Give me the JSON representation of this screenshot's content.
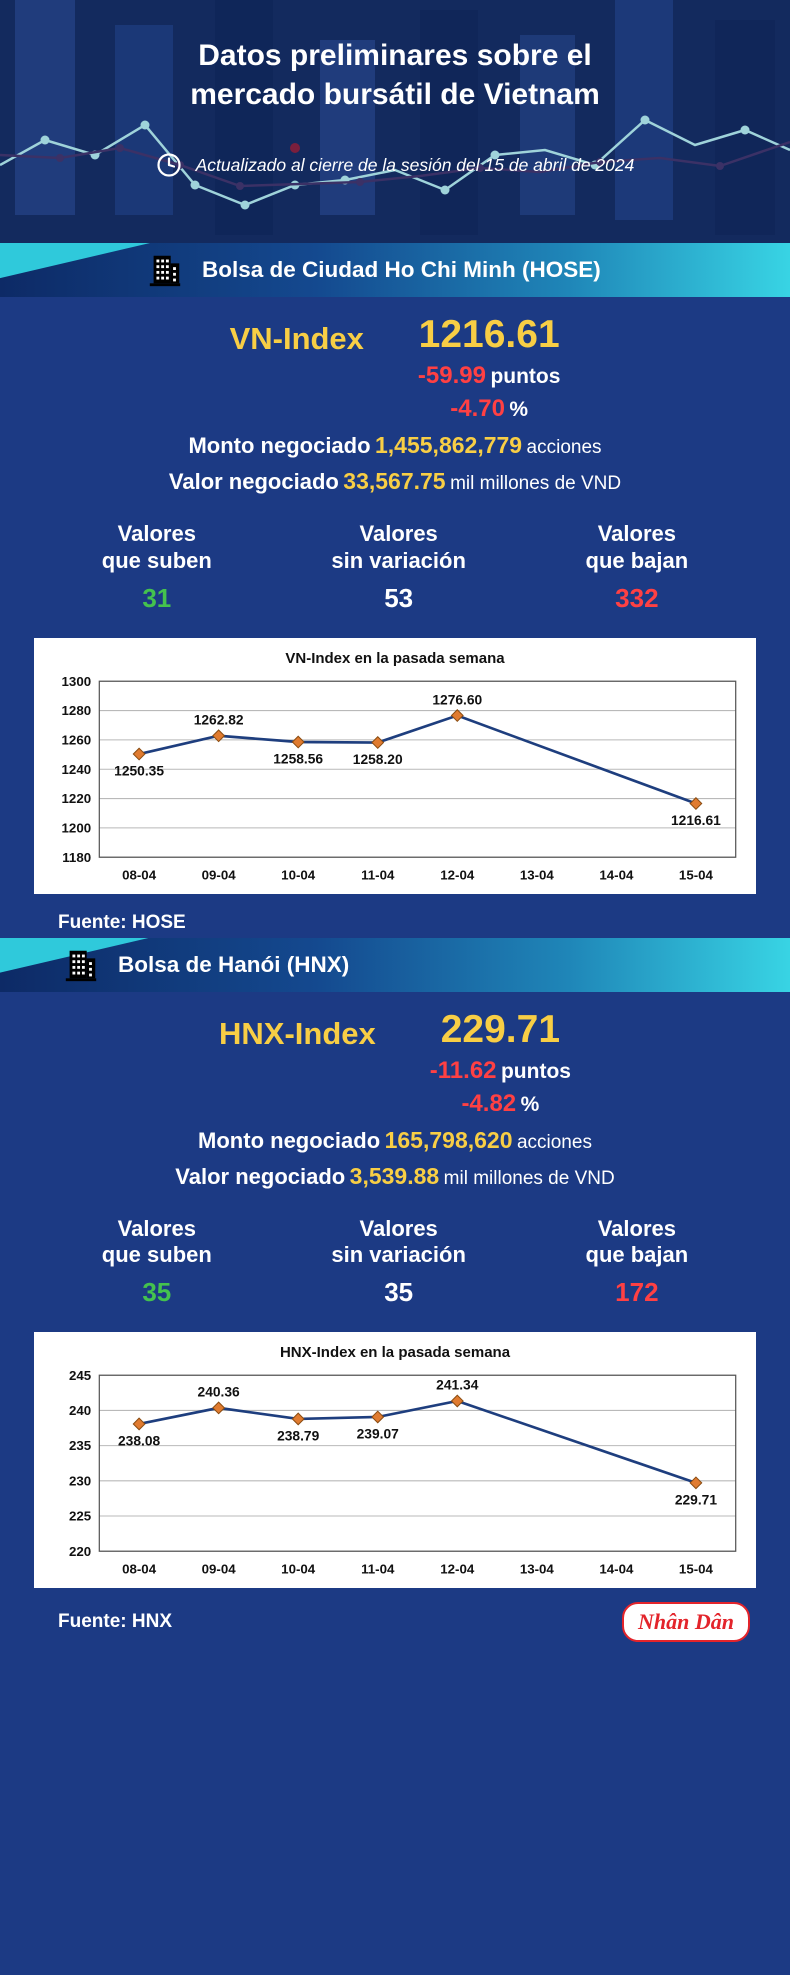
{
  "page": {
    "title_line1": "Datos preliminares sobre el",
    "title_line2": "mercado bursátil de Vietnam",
    "updated": "Actualizado al cierre de la sesión del 15 de abril de 2024"
  },
  "colors": {
    "background": "#1c3a84",
    "header_background": "#132a5e",
    "accent_yellow": "#f8ce45",
    "negative_red": "#ff4043",
    "positive_green": "#44c24e",
    "banner_cyan": "#38d4e4",
    "chart_line": "#1e3e7e",
    "chart_marker": "#e07b30"
  },
  "sections": [
    {
      "banner": "Bolsa de Ciudad Ho Chi Minh (HOSE)",
      "index_label": "VN-Index",
      "index_value": "1216.61",
      "change_points": "-59.99",
      "points_unit": "puntos",
      "change_pct": "-4.70",
      "pct_unit": "%",
      "volume_label": "Monto negociado",
      "volume_value": "1,455,862,779",
      "volume_unit": "acciones",
      "turnover_label": "Valor negociado",
      "turnover_value": "33,567.75",
      "turnover_unit": "mil millones de VND",
      "stats": [
        {
          "line1": "Valores",
          "line2": "que suben",
          "value": "31"
        },
        {
          "line1": "Valores",
          "line2": "sin variación",
          "value": "53"
        },
        {
          "line1": "Valores",
          "line2": "que bajan",
          "value": "332"
        }
      ],
      "source": "Fuente: HOSE"
    },
    {
      "banner": "Bolsa de Hanói (HNX)",
      "index_label": "HNX-Index",
      "index_value": "229.71",
      "change_points": "-11.62",
      "points_unit": "puntos",
      "change_pct": "-4.82",
      "pct_unit": "%",
      "volume_label": "Monto negociado",
      "volume_value": "165,798,620",
      "volume_unit": "acciones",
      "turnover_label": "Valor negociado",
      "turnover_value": "3,539.88",
      "turnover_unit": "mil millones de VND",
      "stats": [
        {
          "line1": "Valores",
          "line2": "que suben",
          "value": "35"
        },
        {
          "line1": "Valores",
          "line2": "sin variación",
          "value": "35"
        },
        {
          "line1": "Valores",
          "line2": "que bajan",
          "value": "172"
        }
      ],
      "source": "Fuente:  HNX"
    }
  ],
  "chart_data": [
    {
      "type": "line",
      "title": "VN-Index en la pasada semana",
      "x": [
        "08-04",
        "09-04",
        "10-04",
        "11-04",
        "12-04",
        "13-04",
        "14-04",
        "15-04"
      ],
      "values": [
        1250.35,
        1262.82,
        1258.56,
        1258.2,
        1276.6,
        null,
        null,
        1216.61
      ],
      "label_pos": [
        "below",
        "above",
        "below",
        "below",
        "above",
        null,
        null,
        "below"
      ],
      "ylim": [
        1180,
        1300
      ],
      "yticks": [
        1180,
        1200,
        1220,
        1240,
        1260,
        1280,
        1300
      ],
      "grid": true,
      "xlabel": "",
      "ylabel": ""
    },
    {
      "type": "line",
      "title": "HNX-Index en la pasada semana",
      "x": [
        "08-04",
        "09-04",
        "10-04",
        "11-04",
        "12-04",
        "13-04",
        "14-04",
        "15-04"
      ],
      "values": [
        238.08,
        240.36,
        238.79,
        239.07,
        241.34,
        null,
        null,
        229.71
      ],
      "label_pos": [
        "below",
        "above",
        "below",
        "below",
        "above",
        null,
        null,
        "below"
      ],
      "ylim": [
        220,
        245
      ],
      "yticks": [
        220,
        225,
        230,
        235,
        240,
        245
      ],
      "grid": true,
      "xlabel": "",
      "ylabel": ""
    }
  ],
  "logo_text": "Nhân Dân"
}
